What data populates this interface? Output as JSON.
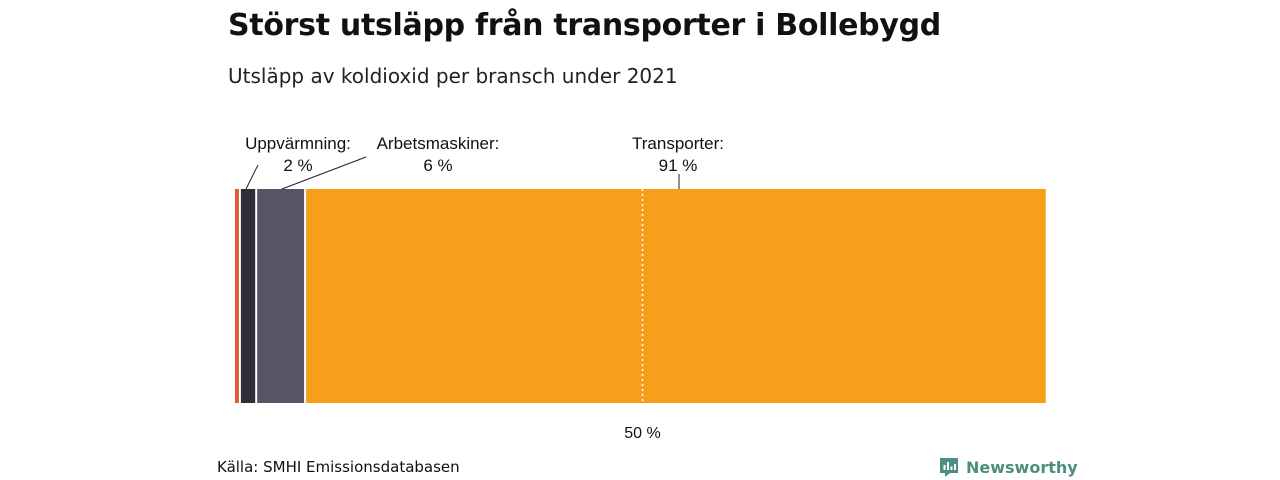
{
  "title": "Störst utsläpp från transporter i Bollebygd",
  "subtitle": "Utsläpp av koldioxid per bransch under 2021",
  "source": "Källa: SMHI Emissionsdatabasen",
  "brand": "Newsworthy",
  "colors": {
    "brand": "#4a8f7f",
    "background": "#ffffff"
  },
  "chart_data": {
    "type": "bar",
    "orientation": "horizontal-stacked-100",
    "xlim": [
      0,
      100
    ],
    "grid": false,
    "reference_line": {
      "value": 50,
      "label": "50 %",
      "style": "dotted"
    },
    "segments": [
      {
        "value": 0.6,
        "color": "#e05a2b",
        "label": "",
        "value_label": ""
      },
      {
        "value": 2,
        "color": "#2e2e38",
        "label": "Uppvärmning:",
        "value_label": "2 %"
      },
      {
        "value": 6,
        "color": "#575564",
        "label": "Arbetsmaskiner:",
        "value_label": "6 %"
      },
      {
        "value": 91,
        "color": "#f59f1a",
        "label": "Transporter:",
        "value_label": "91 %"
      }
    ]
  }
}
